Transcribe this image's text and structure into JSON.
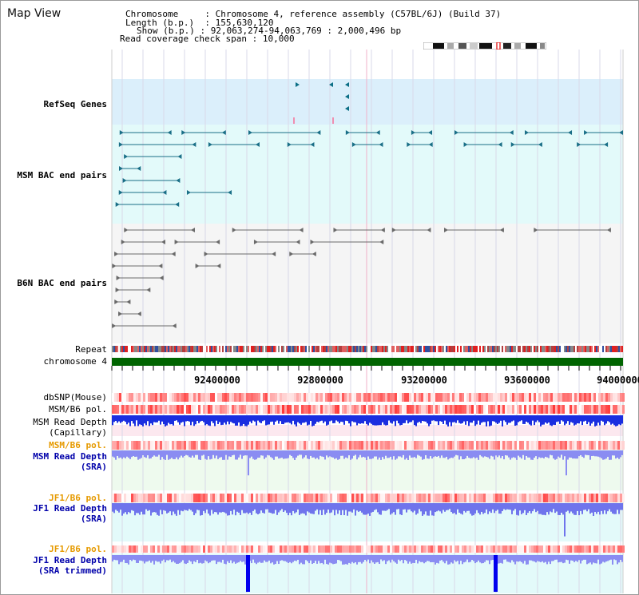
{
  "page": {
    "title": "Map View"
  },
  "header": {
    "chromosome_label": "Chromosome",
    "chromosome_value": "Chromosome 4, reference assembly (C57BL/6J) (Build 37)",
    "length_label": "Length (b.p.)",
    "length_value": "155,630,120",
    "show_label": "Show (b.p.)",
    "show_value": "92,063,274-94,063,769 : 2,000,496 bp",
    "coverage_label": "Read coverage check span",
    "coverage_value": "10,000"
  },
  "tracks": {
    "refseq": "RefSeq Genes",
    "msm_bac": "MSM BAC end pairs",
    "b6n_bac": "B6N BAC end pairs",
    "repeat": "Repeat",
    "chromosome": "chromosome 4",
    "dbsnp": "dbSNP(Mouse)",
    "msm_b6_pol_1": "MSM/B6 pol.",
    "msm_read_depth_cap_1": "MSM Read Depth",
    "msm_read_depth_cap_2": "(Capillary)",
    "msm_b6_pol_2": "MSM/B6 pol.",
    "msm_read_depth_sra_1": "MSM Read Depth",
    "msm_read_depth_sra_2": "(SRA)",
    "jf1_b6_pol_1": "JF1/B6 pol.",
    "jf1_read_depth_1": "JF1 Read Depth",
    "jf1_read_depth_2": "(SRA)",
    "jf1_b6_pol_2": "JF1/B6 pol.",
    "jf1_trim_1": "JF1 Read Depth",
    "jf1_trim_2": "(SRA trimmed)"
  },
  "axis": {
    "ticks": [
      "92400000",
      "92800000",
      "93200000",
      "93600000",
      "94000000"
    ]
  },
  "colors": {
    "refseq_bg": "#dbeffb",
    "msm_bac_bg": "#e3fafa",
    "b6n_bac_bg": "#f5f5f5",
    "msm_sra_bg": "#eefaee",
    "jf1_bg": "#e3fafa",
    "refseq_label": "#0000aa",
    "msm_label": "#007a8a",
    "b6n_label": "#555555",
    "orange_label": "#e69a00",
    "blue_label": "#0000aa",
    "chromosome_bar": "#006400",
    "depth_bar": "#0000ee"
  }
}
